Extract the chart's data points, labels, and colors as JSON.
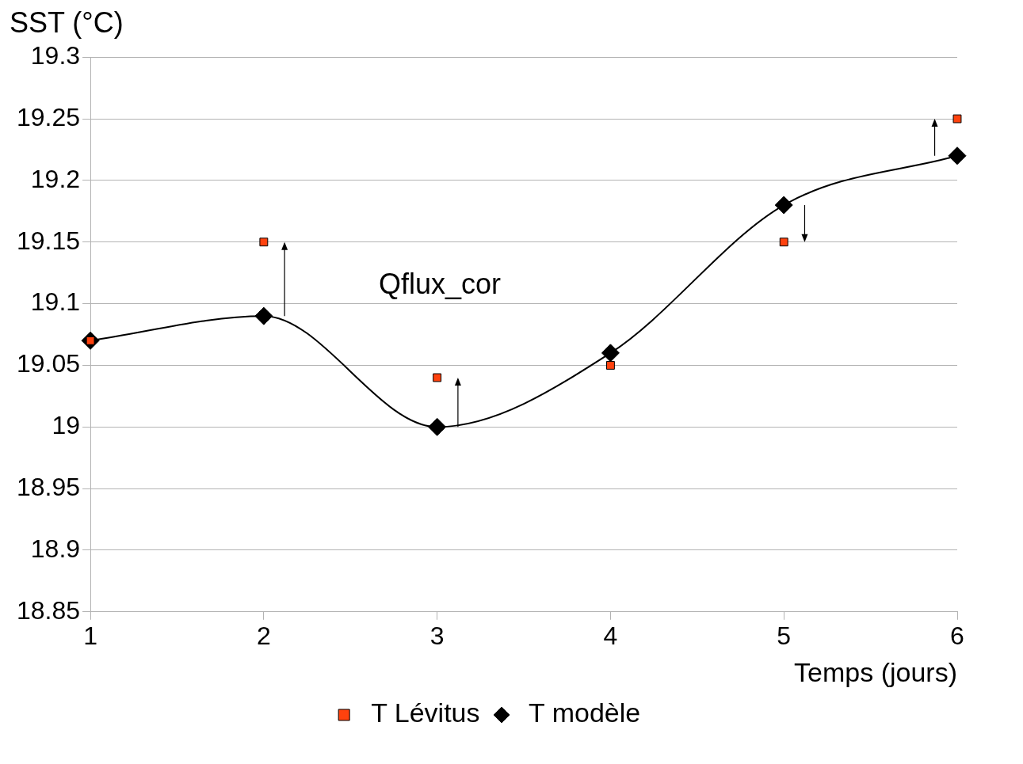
{
  "chart_data": {
    "type": "line",
    "ylabel": "SST (°C)",
    "xlabel": "Temps (jours)",
    "x": [
      1,
      2,
      3,
      4,
      5,
      6
    ],
    "series": [
      {
        "name": "T Lévitus",
        "type": "scatter",
        "color": "#ff420e",
        "marker": "square",
        "values": [
          19.07,
          19.15,
          19.04,
          19.05,
          19.15,
          19.25
        ]
      },
      {
        "name": "T modèle",
        "type": "line",
        "color": "#000000",
        "marker": "diamond",
        "values": [
          19.07,
          19.09,
          19.0,
          19.06,
          19.18,
          19.22
        ]
      }
    ],
    "annotations": [
      "Qflux_cor"
    ],
    "xlim": [
      1,
      6
    ],
    "xticks": [
      1,
      2,
      3,
      4,
      5,
      6
    ],
    "ylim": [
      18.85,
      19.3
    ],
    "yticks": [
      18.85,
      18.9,
      18.95,
      19,
      19.05,
      19.1,
      19.15,
      19.2,
      19.25,
      19.3
    ],
    "grid": "y",
    "legend": "bottom"
  }
}
